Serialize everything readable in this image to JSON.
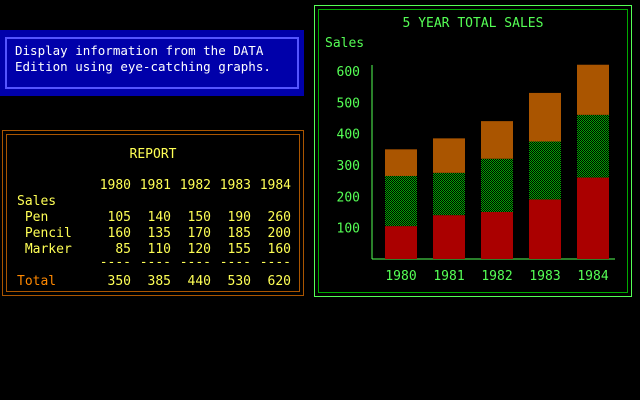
{
  "info_box": {
    "line1": "Display information from the DATA",
    "line2": "Edition using eye-catching graphs."
  },
  "report": {
    "title": "REPORT",
    "years": [
      "1980",
      "1981",
      "1982",
      "1983",
      "1984"
    ],
    "sales_label": "Sales",
    "rows": [
      {
        "label": " Pen",
        "values": [
          "105",
          "140",
          "150",
          "190",
          "260"
        ]
      },
      {
        "label": " Pencil",
        "values": [
          "160",
          "135",
          "170",
          "185",
          "200"
        ]
      },
      {
        "label": " Marker",
        "values": [
          "85",
          "110",
          "120",
          "155",
          "160"
        ]
      }
    ],
    "dashes": [
      "----",
      "----",
      "----",
      "----",
      "----"
    ],
    "total_label": "Total",
    "totals": [
      "350",
      "385",
      "440",
      "530",
      "620"
    ]
  },
  "colors": {
    "green": "#55ff55",
    "pen": "#aa0000",
    "pencil": "#00aa00",
    "marker": "#aa5500",
    "report_text": "#ffff55",
    "report_border": "#aa5500",
    "info_bg": "#0000aa"
  },
  "chart_data": {
    "type": "bar",
    "stacked": true,
    "title": "5 YEAR TOTAL SALES",
    "ylabel": "Sales",
    "xlabel": "",
    "categories": [
      "1980",
      "1981",
      "1982",
      "1983",
      "1984"
    ],
    "series": [
      {
        "name": "Pen",
        "values": [
          105,
          140,
          150,
          190,
          260
        ]
      },
      {
        "name": "Pencil",
        "values": [
          160,
          135,
          170,
          185,
          200
        ]
      },
      {
        "name": "Marker",
        "values": [
          85,
          110,
          120,
          155,
          160
        ]
      }
    ],
    "yticks": [
      100,
      200,
      300,
      400,
      500,
      600
    ],
    "ylim": [
      0,
      620
    ],
    "grid": false,
    "legend": "none"
  }
}
